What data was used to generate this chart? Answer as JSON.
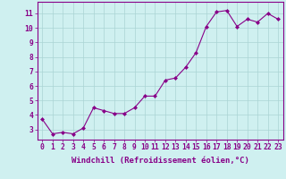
{
  "x": [
    0,
    1,
    2,
    3,
    4,
    5,
    6,
    7,
    8,
    9,
    10,
    11,
    12,
    13,
    14,
    15,
    16,
    17,
    18,
    19,
    20,
    21,
    22,
    23
  ],
  "y": [
    3.7,
    2.7,
    2.8,
    2.7,
    3.1,
    4.5,
    4.3,
    4.1,
    4.1,
    4.5,
    5.3,
    5.3,
    6.4,
    6.55,
    7.3,
    8.3,
    10.1,
    11.1,
    11.2,
    10.1,
    10.6,
    10.4,
    11.0,
    10.6
  ],
  "line_color": "#880088",
  "marker": "D",
  "marker_size": 2.0,
  "bg_color": "#cff0f0",
  "grid_color": "#aad4d4",
  "xlabel": "Windchill (Refroidissement éolien,°C)",
  "xlim": [
    -0.5,
    23.5
  ],
  "ylim": [
    2.3,
    11.8
  ],
  "yticks": [
    3,
    4,
    5,
    6,
    7,
    8,
    9,
    10,
    11
  ],
  "xtick_labels": [
    "0",
    "1",
    "2",
    "3",
    "4",
    "5",
    "6",
    "7",
    "8",
    "9",
    "10",
    "11",
    "12",
    "13",
    "14",
    "15",
    "16",
    "17",
    "18",
    "19",
    "20",
    "21",
    "22",
    "23"
  ],
  "tick_color": "#880088",
  "label_fontsize": 6.5,
  "tick_fontsize": 5.8,
  "spine_color": "#880088"
}
